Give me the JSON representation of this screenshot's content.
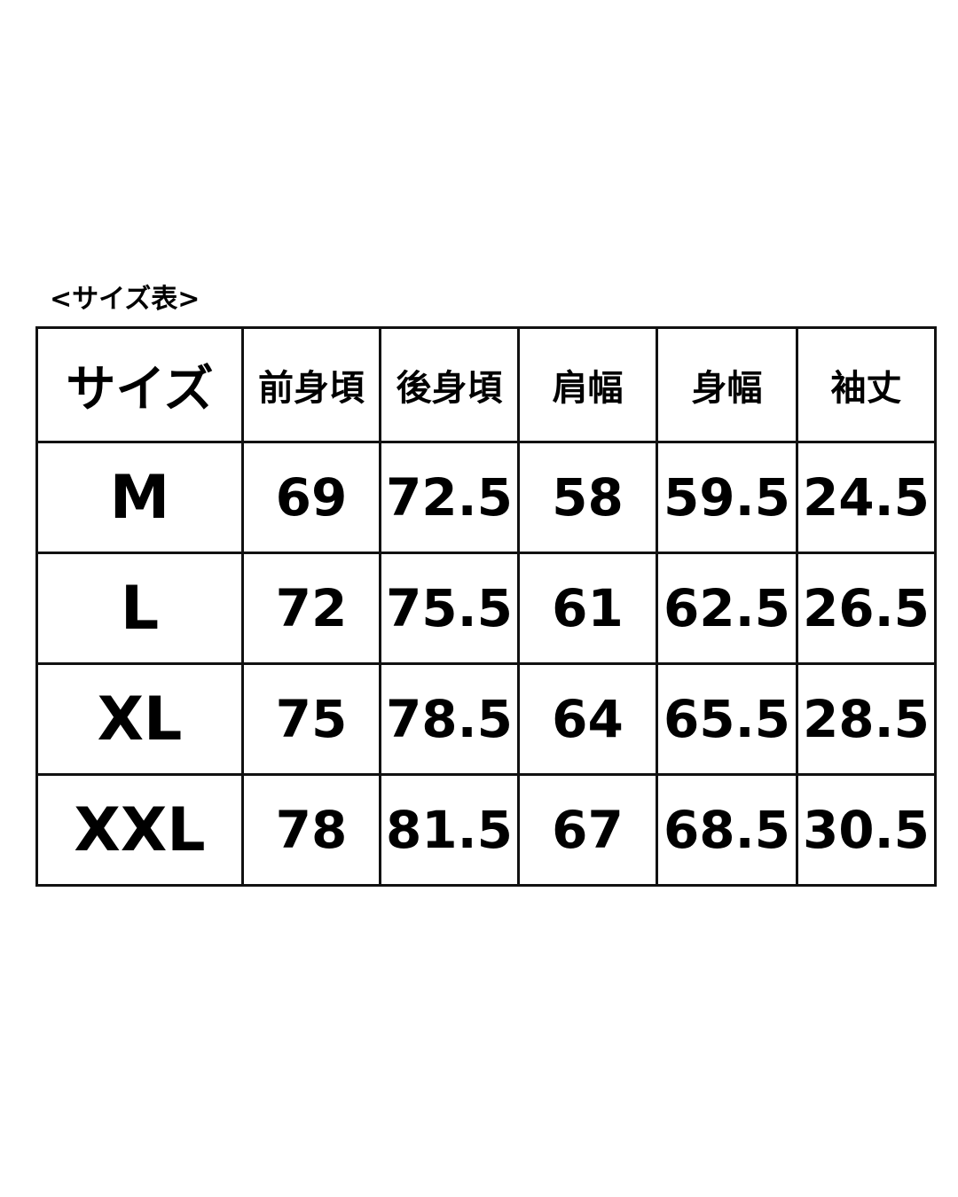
{
  "title": "<サイズ表>",
  "table": {
    "headers": [
      "サイズ",
      "前身頃",
      "後身頃",
      "肩幅",
      "身幅",
      "袖丈"
    ],
    "rows": [
      [
        "M",
        "69",
        "72.5",
        "58",
        "59.5",
        "24.5"
      ],
      [
        "L",
        "72",
        "75.5",
        "61",
        "62.5",
        "26.5"
      ],
      [
        "XL",
        "75",
        "78.5",
        "64",
        "65.5",
        "28.5"
      ],
      [
        "XXL",
        "78",
        "81.5",
        "67",
        "68.5",
        "30.5"
      ]
    ]
  }
}
